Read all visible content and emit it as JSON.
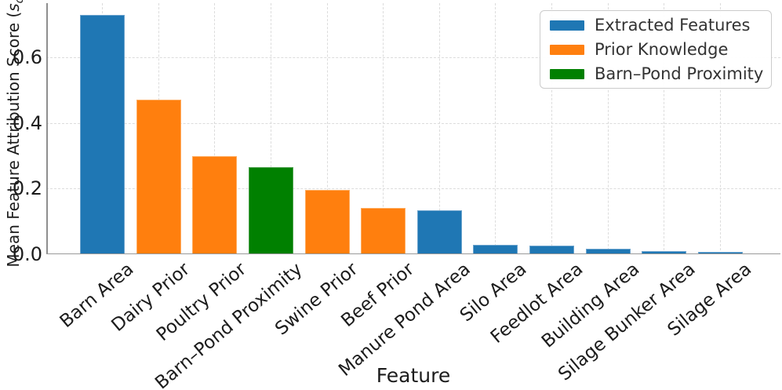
{
  "chart_data": {
    "type": "bar",
    "title": "",
    "xlabel": "Feature",
    "ylabel": "Mean Feature Attribution Score (s_d)",
    "ylabel_prefix": "Mean Feature Attribution Score (",
    "ylabel_var": "s",
    "ylabel_sub": "d",
    "ylabel_suffix": ")",
    "ylim": [
      0,
      0.765
    ],
    "grid": true,
    "legend_position": "upper right",
    "yticks": [
      {
        "value": 0.0,
        "label": "0.0"
      },
      {
        "value": 0.2,
        "label": "0.2"
      },
      {
        "value": 0.4,
        "label": "0.4"
      },
      {
        "value": 0.6,
        "label": "0.6"
      }
    ],
    "legend": [
      {
        "key": "extracted",
        "label": "Extracted Features",
        "color": "#1f77b4",
        "edge": "#6ba3cd"
      },
      {
        "key": "prior",
        "label": "Prior Knowledge",
        "color": "#ff7f0e",
        "edge": "#ffac5f"
      },
      {
        "key": "proximity",
        "label": "Barn–Pond Proximity",
        "color": "#008000",
        "edge": "#4da24d"
      }
    ],
    "bars": [
      {
        "category": "Barn Area",
        "value": 0.73,
        "group": "extracted"
      },
      {
        "category": "Dairy Prior",
        "value": 0.47,
        "group": "prior"
      },
      {
        "category": "Poultry Prior",
        "value": 0.3,
        "group": "prior"
      },
      {
        "category": "Barn–Pond Proximity",
        "value": 0.265,
        "group": "proximity"
      },
      {
        "category": "Swine Prior",
        "value": 0.195,
        "group": "prior"
      },
      {
        "category": "Beef Prior",
        "value": 0.14,
        "group": "prior"
      },
      {
        "category": "Manure Pond Area",
        "value": 0.135,
        "group": "extracted"
      },
      {
        "category": "Silo Area",
        "value": 0.028,
        "group": "extracted"
      },
      {
        "category": "Feedlot Area",
        "value": 0.026,
        "group": "extracted"
      },
      {
        "category": "Building Area",
        "value": 0.016,
        "group": "extracted"
      },
      {
        "category": "Silage Bunker Area",
        "value": 0.01,
        "group": "extracted"
      },
      {
        "category": "Silage Area",
        "value": 0.007,
        "group": "extracted"
      }
    ]
  }
}
